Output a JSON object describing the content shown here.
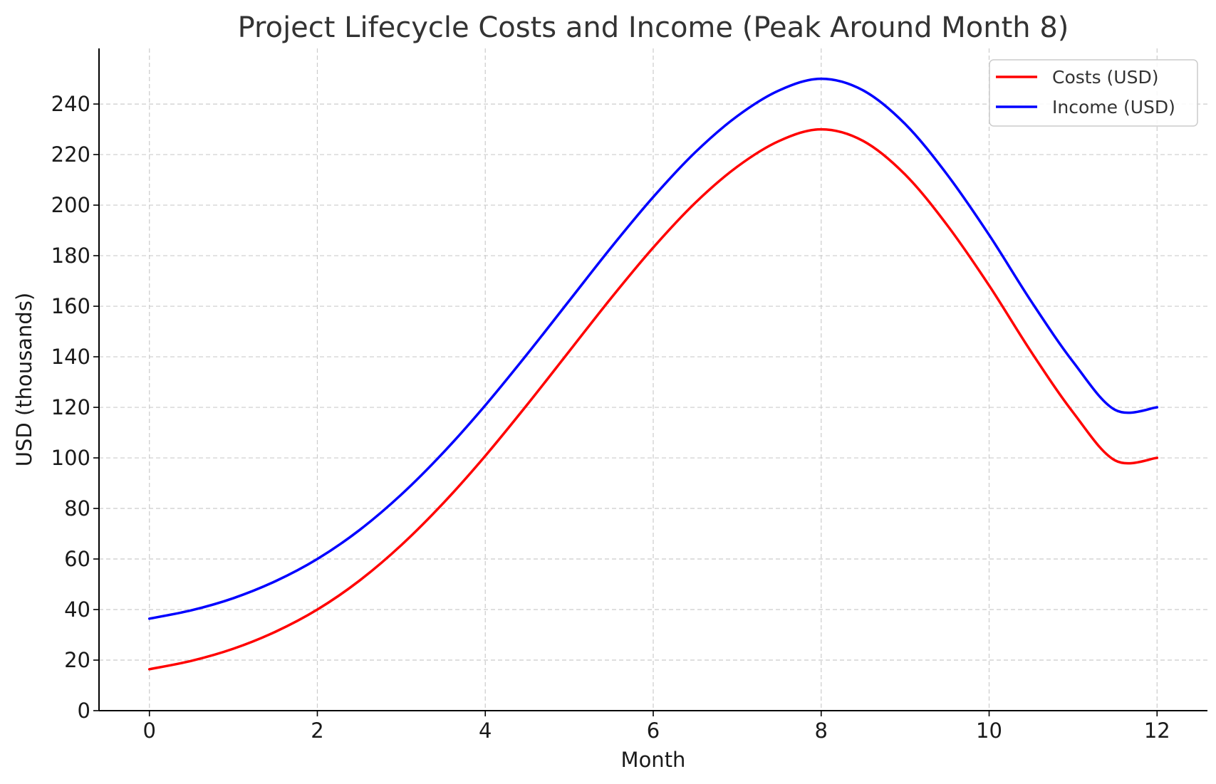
{
  "chart_data": {
    "type": "line",
    "title": "Project Lifecycle Costs and Income (Peak Around Month 8)",
    "xlabel": "Month",
    "ylabel": "USD (thousands)",
    "xlim": [
      -0.6,
      12.6
    ],
    "ylim": [
      0,
      262
    ],
    "xticks": [
      0,
      2,
      4,
      6,
      8,
      10,
      12
    ],
    "yticks": [
      0,
      20,
      40,
      60,
      80,
      100,
      120,
      140,
      160,
      180,
      200,
      220,
      240
    ],
    "grid": true,
    "legend_position": "top-right",
    "x": [
      0,
      0.5,
      1,
      1.5,
      2,
      2.5,
      3,
      3.5,
      4,
      4.5,
      5,
      5.5,
      6,
      6.5,
      7,
      7.5,
      8,
      8.5,
      9,
      9.5,
      10,
      10.5,
      11,
      11.5,
      12
    ],
    "series": [
      {
        "name": "Costs (USD)",
        "color": "#ff0000",
        "values": [
          16.4,
          19.7,
          24.5,
          31.2,
          40.0,
          51.4,
          65.5,
          82.1,
          100.8,
          121.1,
          142.2,
          163.3,
          183.2,
          200.9,
          215.2,
          225.4,
          230.0,
          225.4,
          212.1,
          192.1,
          168.2,
          142.0,
          118.0,
          99.0,
          100.0
        ]
      },
      {
        "name": "Income (USD)",
        "color": "#0000ff",
        "values": [
          36.4,
          39.7,
          44.5,
          51.2,
          60.0,
          71.4,
          85.5,
          102.1,
          120.8,
          141.1,
          162.2,
          183.3,
          203.2,
          220.9,
          235.2,
          245.4,
          250.0,
          245.4,
          232.1,
          212.1,
          188.2,
          162.0,
          138.0,
          119.0,
          120.0
        ]
      }
    ]
  }
}
